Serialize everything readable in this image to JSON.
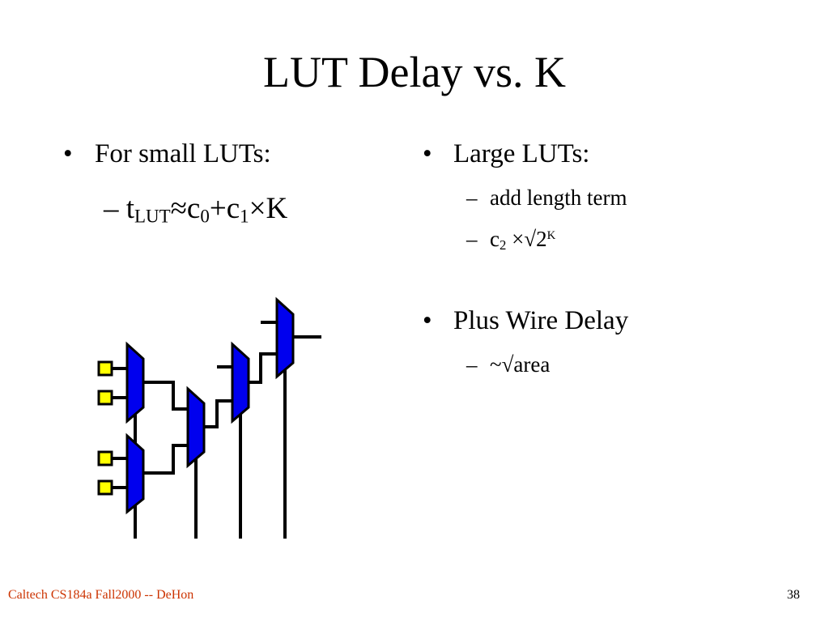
{
  "title": "LUT Delay vs. K",
  "left": {
    "bullet": "For small LUTs:",
    "formula": [
      "t",
      "LUT",
      "≈c",
      "0",
      "+c",
      "1",
      "×K"
    ]
  },
  "right": {
    "bullets": [
      {
        "text": "Large LUTs:",
        "items": [
          "add length term",
          [
            "c",
            "2",
            " ×√2",
            "K"
          ]
        ]
      },
      {
        "text": "Plus Wire Delay",
        "items": [
          "~√area"
        ]
      }
    ]
  },
  "footer": {
    "left": "Caltech CS184a Fall2000 -- DeHon",
    "page": "38"
  }
}
